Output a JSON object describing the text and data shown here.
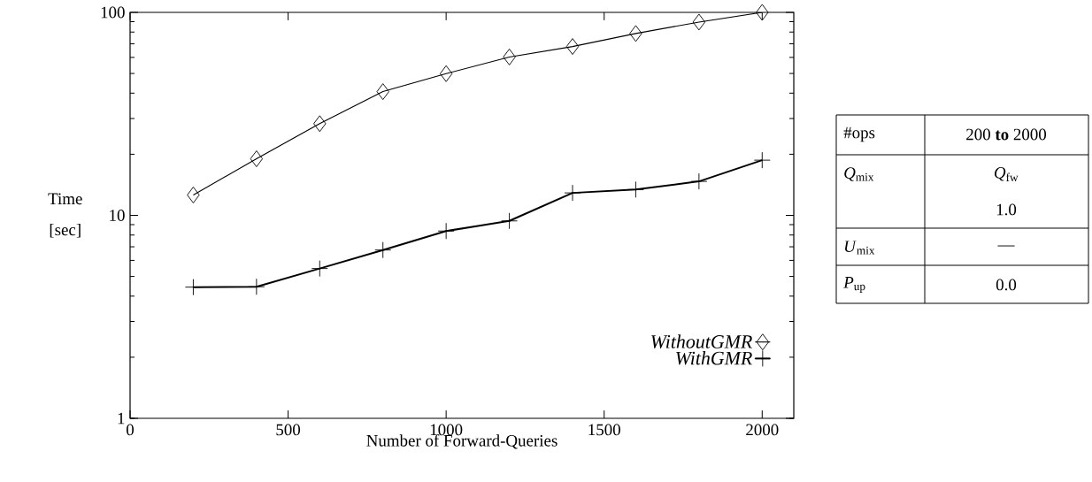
{
  "chart_data": [
    {
      "type": "line",
      "xlabel": "Number of Forward-Queries",
      "ylabel": "Time [sec]",
      "log": "y",
      "x": [
        200,
        400,
        600,
        800,
        1000,
        1200,
        1400,
        1600,
        1800,
        2000
      ],
      "xlim": [
        0,
        2100
      ],
      "xticks": [
        0,
        500,
        1000,
        1500,
        2000
      ],
      "ylim": [
        1,
        100
      ],
      "yticks": [
        1,
        10,
        100
      ],
      "legend": "bottom right",
      "grid": false,
      "line_style": "solid",
      "series": [
        {
          "name": "WithoutGMR",
          "color": "#000000",
          "marker": "diamond",
          "values": [
            12.6,
            19.0,
            28.3,
            40.7,
            49.9,
            60.3,
            67.9,
            78.7,
            89.6,
            100
          ]
        },
        {
          "name": "WithGMR",
          "color": "#000000",
          "marker": "cross",
          "values": [
            4.43,
            4.45,
            5.47,
            6.75,
            8.37,
            9.39,
            12.9,
            13.4,
            14.7,
            18.7
          ]
        }
      ]
    },
    {
      "type": "other",
      "annotations": [
        "#ops",
        "200 **to** 2000",
        "*Q*$_{mix}$",
        "*Q*$_{fw}$",
        "1.0",
        "*U*$_{mix}$",
        "—",
        "*P*$_{up}$",
        "0.0"
      ]
    }
  ]
}
